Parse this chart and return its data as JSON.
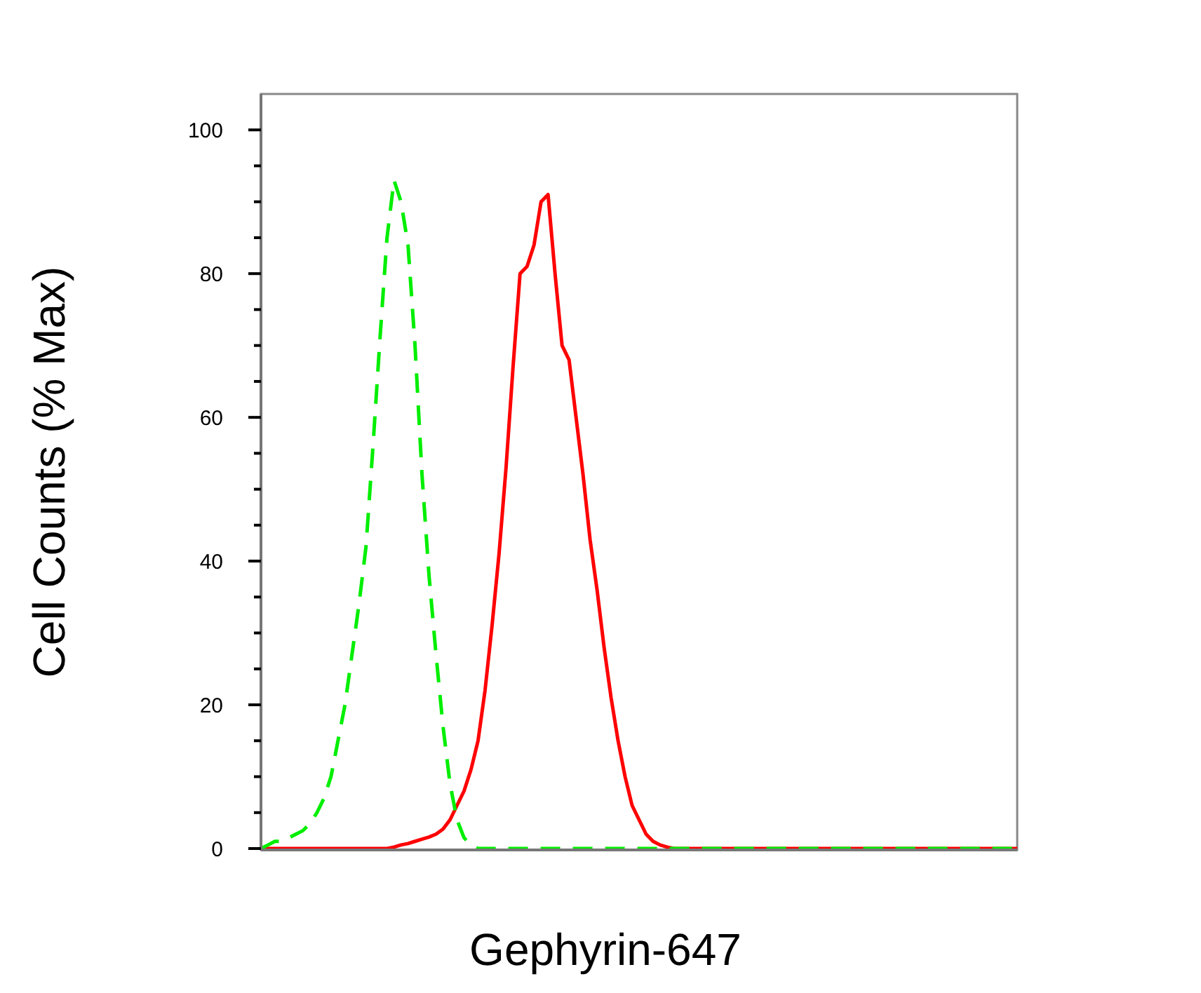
{
  "chart_data": {
    "type": "line",
    "xlabel": "Gephyrin-647",
    "ylabel": "Cell Counts (% Max)",
    "categories": [
      null,
      null,
      null,
      null,
      null,
      null,
      null,
      null,
      null,
      null,
      null,
      null,
      null,
      null,
      null,
      null,
      null,
      null,
      null,
      null,
      null,
      null,
      null,
      null,
      null,
      null,
      null,
      null,
      null,
      null,
      null,
      null,
      null,
      null,
      null,
      null,
      null,
      null,
      null,
      null,
      null,
      null,
      null,
      null,
      null,
      null,
      null,
      null,
      null,
      null,
      null,
      null,
      null,
      null,
      null,
      null,
      null,
      null,
      null,
      null,
      null,
      null,
      null,
      null,
      null,
      null,
      null,
      null,
      null,
      null,
      null,
      null,
      null,
      null,
      null,
      null,
      null,
      null,
      null,
      null,
      null,
      null,
      null,
      null,
      null,
      null,
      null,
      null,
      null,
      null,
      null,
      null,
      null,
      null,
      null,
      null,
      null,
      null,
      null,
      null,
      null,
      null,
      null,
      null,
      null,
      null,
      null,
      null,
      null
    ],
    "series": [
      {
        "color": "#00ee00",
        "line_style": "dashed",
        "values": [
          0,
          0.5,
          1,
          1,
          1.5,
          2,
          2.5,
          3.5,
          5,
          7,
          10,
          15,
          20,
          27,
          34,
          42,
          56,
          71,
          85,
          93,
          90,
          84,
          70,
          52,
          38,
          27,
          17,
          9,
          4,
          1.5,
          0.5,
          0,
          0,
          0,
          0,
          0,
          0,
          0,
          0,
          0,
          0,
          0,
          0,
          0,
          0,
          0,
          0,
          0,
          0,
          0,
          0,
          0,
          0,
          0,
          0,
          0,
          0,
          0,
          0,
          0,
          0,
          0,
          0,
          0,
          0,
          0,
          0,
          0,
          0,
          0,
          0,
          0,
          0,
          0,
          0,
          0,
          0,
          0,
          0,
          0,
          0,
          0,
          0,
          0,
          0,
          0,
          0,
          0,
          0,
          0,
          0,
          0,
          0,
          0,
          0,
          0,
          0,
          0,
          0,
          0,
          0,
          0,
          0,
          0,
          0,
          0,
          0,
          0,
          0
        ]
      },
      {
        "color": "#ff0000",
        "line_style": "solid",
        "values": [
          0,
          0,
          0,
          0,
          0,
          0,
          0,
          0,
          0,
          0,
          0,
          0,
          0,
          0,
          0,
          0,
          0,
          0,
          0,
          0.2,
          0.5,
          0.7,
          1,
          1.3,
          1.6,
          2,
          2.7,
          4,
          6,
          8,
          11,
          15,
          22,
          31,
          41,
          53,
          67,
          80,
          81,
          84,
          90,
          91,
          80,
          70,
          68,
          60,
          52,
          43,
          36,
          28,
          21,
          15,
          10,
          6,
          4,
          2,
          1,
          0.5,
          0.2,
          0,
          0,
          0,
          0,
          0,
          0,
          0,
          0,
          0,
          0,
          0,
          0,
          0,
          0,
          0,
          0,
          0,
          0,
          0,
          0,
          0,
          0,
          0,
          0,
          0,
          0,
          0,
          0,
          0,
          0,
          0,
          0,
          0,
          0,
          0,
          0,
          0,
          0,
          0,
          0,
          0,
          0,
          0,
          0,
          0,
          0,
          0,
          0,
          0,
          0
        ]
      }
    ],
    "ylim": [
      0,
      105
    ],
    "yticks": [
      0,
      {
        "value": 5,
        "label": null
      },
      {
        "value": 10,
        "label": null
      },
      {
        "value": 15,
        "label": null
      },
      20,
      {
        "value": 25,
        "label": null
      },
      {
        "value": 30,
        "label": null
      },
      {
        "value": 35,
        "label": null
      },
      40,
      {
        "value": 45,
        "label": null
      },
      {
        "value": 50,
        "label": null
      },
      {
        "value": 55,
        "label": null
      },
      60,
      {
        "value": 65,
        "label": null
      },
      {
        "value": 70,
        "label": null
      },
      {
        "value": 75,
        "label": null
      },
      80,
      {
        "value": 85,
        "label": null
      },
      {
        "value": 90,
        "label": null
      },
      {
        "value": 95,
        "label": null
      },
      100
    ],
    "tick_labels": "y",
    "grid": false
  }
}
